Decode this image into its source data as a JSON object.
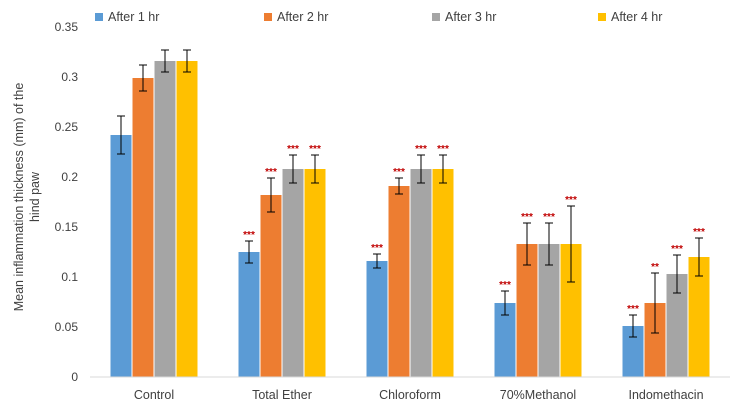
{
  "chart_data": {
    "type": "bar",
    "title": "",
    "xlabel": "",
    "ylabel": "Mean inflammation thickness (mm) of the hind paw",
    "ylim": [
      0,
      0.35
    ],
    "yticks": [
      "0",
      "0.05",
      "0.1",
      "0.15",
      "0.2",
      "0.25",
      "0.3",
      "0.35"
    ],
    "categories": [
      "Control",
      "Total Ether",
      "Chloroform",
      "70%Methanol",
      "Indomethacin"
    ],
    "legend_position": "top",
    "grid": false,
    "series": [
      {
        "name": "After 1 hr",
        "color": "#5b9bd5",
        "values": [
          0.242,
          0.125,
          0.116,
          0.074,
          0.051
        ],
        "errors": [
          0.019,
          0.011,
          0.007,
          0.012,
          0.011
        ],
        "significance": [
          "",
          "***",
          "***",
          "***",
          "***"
        ]
      },
      {
        "name": "After 2 hr",
        "color": "#ed7d31",
        "values": [
          0.299,
          0.182,
          0.191,
          0.133,
          0.074
        ],
        "errors": [
          0.013,
          0.017,
          0.008,
          0.021,
          0.03
        ],
        "significance": [
          "",
          "***",
          "***",
          "***",
          "**"
        ]
      },
      {
        "name": "After 3 hr",
        "color": "#a5a5a5",
        "values": [
          0.316,
          0.208,
          0.208,
          0.133,
          0.103
        ],
        "errors": [
          0.011,
          0.014,
          0.014,
          0.021,
          0.019
        ],
        "significance": [
          "",
          "***",
          "***",
          "***",
          "***"
        ]
      },
      {
        "name": "After 4 hr",
        "color": "#ffc000",
        "values": [
          0.316,
          0.208,
          0.208,
          0.133,
          0.12
        ],
        "errors": [
          0.011,
          0.014,
          0.014,
          0.038,
          0.019
        ],
        "significance": [
          "",
          "***",
          "***",
          "***",
          "***"
        ]
      }
    ]
  }
}
